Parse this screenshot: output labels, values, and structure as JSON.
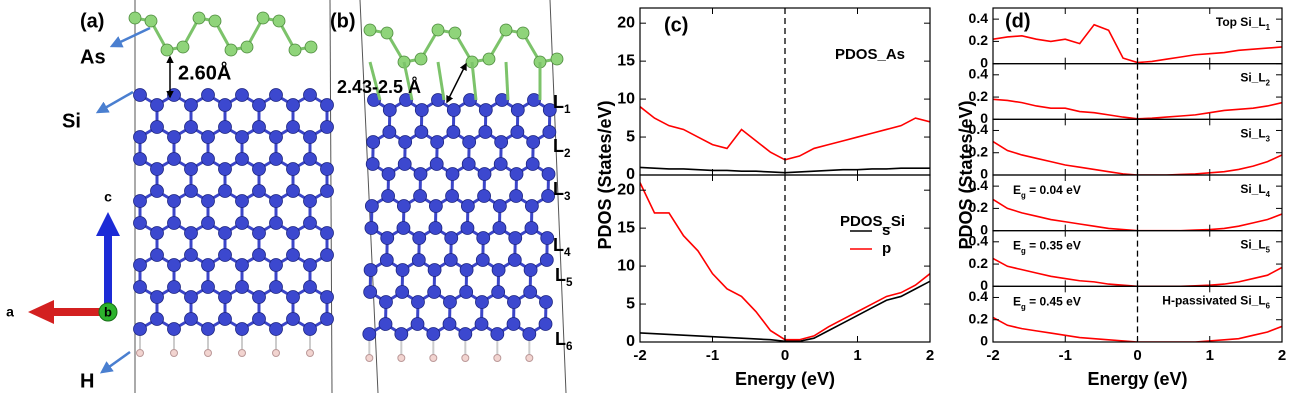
{
  "structure_a": {
    "label": "(a)",
    "as_label": "As",
    "si_label": "Si",
    "h_label": "H",
    "distance": "2.60Å",
    "axes": {
      "c": "c",
      "a": "a",
      "b": "b"
    }
  },
  "structure_b": {
    "label": "(b)",
    "distance": "2.43-2.5 Å",
    "layers": [
      {
        "text": "L",
        "sub": "1"
      },
      {
        "text": "L",
        "sub": "2"
      },
      {
        "text": "L",
        "sub": "3"
      },
      {
        "text": "L",
        "sub": "4"
      },
      {
        "text": "L",
        "sub": "5"
      },
      {
        "text": "L",
        "sub": "6"
      }
    ]
  },
  "chart_data": [
    {
      "type": "line",
      "label": "(c)",
      "xlabel": "Energy (eV)",
      "ylabel": "PDOS (States/eV)",
      "x": [
        -2,
        -1.8,
        -1.6,
        -1.4,
        -1.2,
        -1,
        -0.8,
        -0.6,
        -0.4,
        -0.2,
        0,
        0.2,
        0.4,
        0.6,
        0.8,
        1,
        1.2,
        1.4,
        1.6,
        1.8,
        2
      ],
      "xlim": [
        -2,
        2
      ],
      "xticks": [
        -2,
        -1,
        0,
        1,
        2
      ],
      "vline": 0,
      "panels": [
        {
          "title": "PDOS_As",
          "ylim": [
            0,
            22
          ],
          "yticks": [
            0,
            5,
            10,
            15,
            20
          ],
          "legend": false,
          "series": [
            {
              "name": "s",
              "color": "#000000",
              "values": [
                1.0,
                0.9,
                0.8,
                0.8,
                0.7,
                0.6,
                0.6,
                0.5,
                0.5,
                0.4,
                0.3,
                0.4,
                0.5,
                0.6,
                0.7,
                0.7,
                0.8,
                0.8,
                0.9,
                0.9,
                0.9
              ]
            },
            {
              "name": "p",
              "color": "#ff0000",
              "values": [
                9,
                7.5,
                6.5,
                6,
                5,
                4,
                3.5,
                6,
                4.5,
                3,
                2,
                2.5,
                3.5,
                4,
                4.5,
                5,
                5.5,
                6,
                6.5,
                7.5,
                7
              ]
            }
          ]
        },
        {
          "title": "PDOS_Si",
          "ylim": [
            0,
            22
          ],
          "yticks": [
            0,
            5,
            10,
            15,
            20
          ],
          "legend": true,
          "series": [
            {
              "name": "s",
              "color": "#000000",
              "values": [
                1.2,
                1.1,
                1.0,
                0.9,
                0.8,
                0.7,
                0.6,
                0.5,
                0.4,
                0.3,
                0.1,
                0.1,
                0.5,
                1.5,
                2.5,
                3.5,
                4.5,
                5.5,
                6,
                7,
                8
              ]
            },
            {
              "name": "p",
              "color": "#ff0000",
              "values": [
                21,
                17,
                17,
                14,
                12,
                9,
                7,
                6,
                4,
                1.5,
                0.3,
                0.3,
                0.8,
                2,
                3,
                4,
                5,
                6,
                6.5,
                7.5,
                9
              ]
            }
          ]
        }
      ]
    },
    {
      "type": "line",
      "label": "(d)",
      "xlabel": "Energy (eV)",
      "ylabel": "PDOS (States/eV)",
      "x": [
        -2,
        -1.8,
        -1.6,
        -1.4,
        -1.2,
        -1,
        -0.8,
        -0.6,
        -0.4,
        -0.2,
        0,
        0.2,
        0.4,
        0.6,
        0.8,
        1,
        1.2,
        1.4,
        1.6,
        1.8,
        2
      ],
      "xlim": [
        -2,
        2
      ],
      "xticks": [
        -2,
        -1,
        0,
        1,
        2
      ],
      "vline": 0,
      "panels": [
        {
          "title": {
            "text": "Top Si_L",
            "sub": "1"
          },
          "ylim": [
            0,
            0.5
          ],
          "yticks": [
            0,
            0.2,
            0.4
          ],
          "series": [
            {
              "color": "#ff0000",
              "values": [
                0.22,
                0.24,
                0.25,
                0.22,
                0.2,
                0.22,
                0.18,
                0.35,
                0.3,
                0.05,
                0.01,
                0.02,
                0.04,
                0.06,
                0.08,
                0.09,
                0.1,
                0.12,
                0.13,
                0.14,
                0.15
              ]
            }
          ]
        },
        {
          "title": {
            "text": "Si_L",
            "sub": "2"
          },
          "ylim": [
            0,
            0.5
          ],
          "yticks": [
            0,
            0.2,
            0.4
          ],
          "series": [
            {
              "color": "#ff0000",
              "values": [
                0.18,
                0.17,
                0.15,
                0.12,
                0.1,
                0.1,
                0.07,
                0.06,
                0.04,
                0.02,
                0.005,
                0.01,
                0.02,
                0.03,
                0.04,
                0.06,
                0.08,
                0.09,
                0.1,
                0.12,
                0.15
              ]
            }
          ]
        },
        {
          "title": {
            "text": "Si_L",
            "sub": "3"
          },
          "ylim": [
            0,
            0.5
          ],
          "yticks": [
            0,
            0.2,
            0.4
          ],
          "series": [
            {
              "color": "#ff0000",
              "values": [
                0.3,
                0.22,
                0.18,
                0.15,
                0.12,
                0.09,
                0.07,
                0.05,
                0.03,
                0.01,
                0,
                0,
                0,
                0.005,
                0.01,
                0.02,
                0.03,
                0.05,
                0.08,
                0.12,
                0.18
              ]
            }
          ]
        },
        {
          "title": {
            "text": "Si_L",
            "sub": "4"
          },
          "gap": {
            "pre": "E",
            "sub": "g",
            "post": " = 0.04 eV"
          },
          "ylim": [
            0,
            0.5
          ],
          "yticks": [
            0,
            0.2,
            0.4
          ],
          "series": [
            {
              "color": "#ff0000",
              "values": [
                0.28,
                0.2,
                0.16,
                0.13,
                0.1,
                0.08,
                0.06,
                0.04,
                0.02,
                0.01,
                0,
                0,
                0,
                0,
                0.005,
                0.01,
                0.02,
                0.04,
                0.07,
                0.1,
                0.15
              ]
            }
          ]
        },
        {
          "title": {
            "text": "Si_L",
            "sub": "5"
          },
          "gap": {
            "pre": "E",
            "sub": "g",
            "post": " = 0.35 eV"
          },
          "ylim": [
            0,
            0.5
          ],
          "yticks": [
            0,
            0.2,
            0.4
          ],
          "series": [
            {
              "color": "#ff0000",
              "values": [
                0.25,
                0.18,
                0.15,
                0.12,
                0.09,
                0.07,
                0.05,
                0.04,
                0.02,
                0.01,
                0,
                0,
                0,
                0,
                0.005,
                0.01,
                0.02,
                0.04,
                0.07,
                0.1,
                0.17
              ]
            }
          ]
        },
        {
          "title": {
            "text": "H-passivated Si_L",
            "sub": "6"
          },
          "gap": {
            "pre": "E",
            "sub": "g",
            "post": " = 0.45 eV"
          },
          "ylim": [
            0,
            0.5
          ],
          "yticks": [
            0,
            0.2,
            0.4
          ],
          "series": [
            {
              "color": "#ff0000",
              "values": [
                0.22,
                0.15,
                0.12,
                0.1,
                0.08,
                0.06,
                0.04,
                0.03,
                0.02,
                0.01,
                0,
                0,
                0,
                0,
                0,
                0.01,
                0.02,
                0.03,
                0.06,
                0.09,
                0.14
              ]
            }
          ]
        }
      ]
    }
  ]
}
